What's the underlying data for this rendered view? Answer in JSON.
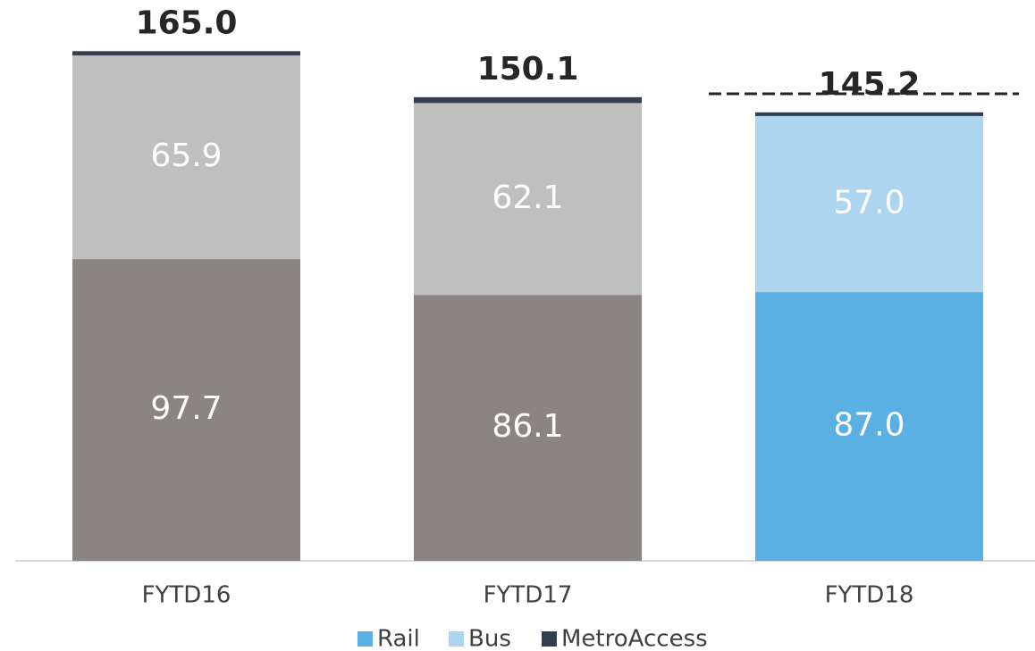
{
  "chart_data": {
    "type": "stacked_bar",
    "categories": [
      "FYTD16",
      "FYTD17",
      "FYTD18"
    ],
    "series": [
      {
        "name": "Rail",
        "color": "#5ab0e2",
        "point_colors": [
          "#8a8583",
          "#8a8583",
          "#5ab0e2"
        ],
        "values": [
          97.7,
          86.1,
          87.0
        ],
        "value_labels": [
          "97.7",
          "86.1",
          "87.0"
        ]
      },
      {
        "name": "Bus",
        "color": "#add5ef",
        "point_colors": [
          "#bfbfbf",
          "#bfbfbf",
          "#add5ef"
        ],
        "values": [
          65.9,
          62.1,
          57.0
        ],
        "value_labels": [
          "65.9",
          "62.1",
          "57.0"
        ]
      },
      {
        "name": "MetroAccess",
        "color": "#333f50",
        "point_colors": [
          "#333f50",
          "#333f50",
          "#333f50"
        ],
        "values": [
          1.4,
          1.9,
          1.2
        ]
      }
    ],
    "totals": [
      165.0,
      150.1,
      145.2
    ],
    "total_labels": [
      "165.0",
      "150.1",
      "145.2"
    ],
    "ylim": [
      0,
      170
    ]
  }
}
